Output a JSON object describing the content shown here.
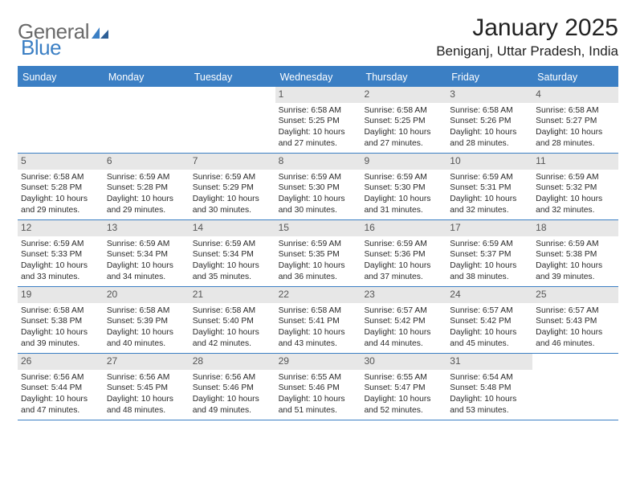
{
  "brand": {
    "text1": "General",
    "text2": "Blue"
  },
  "title": "January 2025",
  "location": "Beniganj, Uttar Pradesh, India",
  "colors": {
    "accent": "#3b7fc4",
    "dayhead_bg": "#3b7fc4",
    "dayhead_text": "#ffffff",
    "daynum_bg": "#e7e7e7",
    "daynum_text": "#555555",
    "body_text": "#2a2a2a",
    "logo_gray": "#6a6a6a",
    "background": "#ffffff"
  },
  "typography": {
    "title_fontsize": 30,
    "location_fontsize": 17,
    "dayhead_fontsize": 12.5,
    "daynum_fontsize": 12,
    "cell_fontsize": 10.3,
    "logo_fontsize": 26
  },
  "dayHeaders": [
    "Sunday",
    "Monday",
    "Tuesday",
    "Wednesday",
    "Thursday",
    "Friday",
    "Saturday"
  ],
  "weeks": [
    [
      {
        "day": "",
        "sunrise": "",
        "sunset": "",
        "daylight": ""
      },
      {
        "day": "",
        "sunrise": "",
        "sunset": "",
        "daylight": ""
      },
      {
        "day": "",
        "sunrise": "",
        "sunset": "",
        "daylight": ""
      },
      {
        "day": "1",
        "sunrise": "Sunrise: 6:58 AM",
        "sunset": "Sunset: 5:25 PM",
        "daylight": "Daylight: 10 hours and 27 minutes."
      },
      {
        "day": "2",
        "sunrise": "Sunrise: 6:58 AM",
        "sunset": "Sunset: 5:25 PM",
        "daylight": "Daylight: 10 hours and 27 minutes."
      },
      {
        "day": "3",
        "sunrise": "Sunrise: 6:58 AM",
        "sunset": "Sunset: 5:26 PM",
        "daylight": "Daylight: 10 hours and 28 minutes."
      },
      {
        "day": "4",
        "sunrise": "Sunrise: 6:58 AM",
        "sunset": "Sunset: 5:27 PM",
        "daylight": "Daylight: 10 hours and 28 minutes."
      }
    ],
    [
      {
        "day": "5",
        "sunrise": "Sunrise: 6:58 AM",
        "sunset": "Sunset: 5:28 PM",
        "daylight": "Daylight: 10 hours and 29 minutes."
      },
      {
        "day": "6",
        "sunrise": "Sunrise: 6:59 AM",
        "sunset": "Sunset: 5:28 PM",
        "daylight": "Daylight: 10 hours and 29 minutes."
      },
      {
        "day": "7",
        "sunrise": "Sunrise: 6:59 AM",
        "sunset": "Sunset: 5:29 PM",
        "daylight": "Daylight: 10 hours and 30 minutes."
      },
      {
        "day": "8",
        "sunrise": "Sunrise: 6:59 AM",
        "sunset": "Sunset: 5:30 PM",
        "daylight": "Daylight: 10 hours and 30 minutes."
      },
      {
        "day": "9",
        "sunrise": "Sunrise: 6:59 AM",
        "sunset": "Sunset: 5:30 PM",
        "daylight": "Daylight: 10 hours and 31 minutes."
      },
      {
        "day": "10",
        "sunrise": "Sunrise: 6:59 AM",
        "sunset": "Sunset: 5:31 PM",
        "daylight": "Daylight: 10 hours and 32 minutes."
      },
      {
        "day": "11",
        "sunrise": "Sunrise: 6:59 AM",
        "sunset": "Sunset: 5:32 PM",
        "daylight": "Daylight: 10 hours and 32 minutes."
      }
    ],
    [
      {
        "day": "12",
        "sunrise": "Sunrise: 6:59 AM",
        "sunset": "Sunset: 5:33 PM",
        "daylight": "Daylight: 10 hours and 33 minutes."
      },
      {
        "day": "13",
        "sunrise": "Sunrise: 6:59 AM",
        "sunset": "Sunset: 5:34 PM",
        "daylight": "Daylight: 10 hours and 34 minutes."
      },
      {
        "day": "14",
        "sunrise": "Sunrise: 6:59 AM",
        "sunset": "Sunset: 5:34 PM",
        "daylight": "Daylight: 10 hours and 35 minutes."
      },
      {
        "day": "15",
        "sunrise": "Sunrise: 6:59 AM",
        "sunset": "Sunset: 5:35 PM",
        "daylight": "Daylight: 10 hours and 36 minutes."
      },
      {
        "day": "16",
        "sunrise": "Sunrise: 6:59 AM",
        "sunset": "Sunset: 5:36 PM",
        "daylight": "Daylight: 10 hours and 37 minutes."
      },
      {
        "day": "17",
        "sunrise": "Sunrise: 6:59 AM",
        "sunset": "Sunset: 5:37 PM",
        "daylight": "Daylight: 10 hours and 38 minutes."
      },
      {
        "day": "18",
        "sunrise": "Sunrise: 6:59 AM",
        "sunset": "Sunset: 5:38 PM",
        "daylight": "Daylight: 10 hours and 39 minutes."
      }
    ],
    [
      {
        "day": "19",
        "sunrise": "Sunrise: 6:58 AM",
        "sunset": "Sunset: 5:38 PM",
        "daylight": "Daylight: 10 hours and 39 minutes."
      },
      {
        "day": "20",
        "sunrise": "Sunrise: 6:58 AM",
        "sunset": "Sunset: 5:39 PM",
        "daylight": "Daylight: 10 hours and 40 minutes."
      },
      {
        "day": "21",
        "sunrise": "Sunrise: 6:58 AM",
        "sunset": "Sunset: 5:40 PM",
        "daylight": "Daylight: 10 hours and 42 minutes."
      },
      {
        "day": "22",
        "sunrise": "Sunrise: 6:58 AM",
        "sunset": "Sunset: 5:41 PM",
        "daylight": "Daylight: 10 hours and 43 minutes."
      },
      {
        "day": "23",
        "sunrise": "Sunrise: 6:57 AM",
        "sunset": "Sunset: 5:42 PM",
        "daylight": "Daylight: 10 hours and 44 minutes."
      },
      {
        "day": "24",
        "sunrise": "Sunrise: 6:57 AM",
        "sunset": "Sunset: 5:42 PM",
        "daylight": "Daylight: 10 hours and 45 minutes."
      },
      {
        "day": "25",
        "sunrise": "Sunrise: 6:57 AM",
        "sunset": "Sunset: 5:43 PM",
        "daylight": "Daylight: 10 hours and 46 minutes."
      }
    ],
    [
      {
        "day": "26",
        "sunrise": "Sunrise: 6:56 AM",
        "sunset": "Sunset: 5:44 PM",
        "daylight": "Daylight: 10 hours and 47 minutes."
      },
      {
        "day": "27",
        "sunrise": "Sunrise: 6:56 AM",
        "sunset": "Sunset: 5:45 PM",
        "daylight": "Daylight: 10 hours and 48 minutes."
      },
      {
        "day": "28",
        "sunrise": "Sunrise: 6:56 AM",
        "sunset": "Sunset: 5:46 PM",
        "daylight": "Daylight: 10 hours and 49 minutes."
      },
      {
        "day": "29",
        "sunrise": "Sunrise: 6:55 AM",
        "sunset": "Sunset: 5:46 PM",
        "daylight": "Daylight: 10 hours and 51 minutes."
      },
      {
        "day": "30",
        "sunrise": "Sunrise: 6:55 AM",
        "sunset": "Sunset: 5:47 PM",
        "daylight": "Daylight: 10 hours and 52 minutes."
      },
      {
        "day": "31",
        "sunrise": "Sunrise: 6:54 AM",
        "sunset": "Sunset: 5:48 PM",
        "daylight": "Daylight: 10 hours and 53 minutes."
      },
      {
        "day": "",
        "sunrise": "",
        "sunset": "",
        "daylight": ""
      }
    ]
  ]
}
